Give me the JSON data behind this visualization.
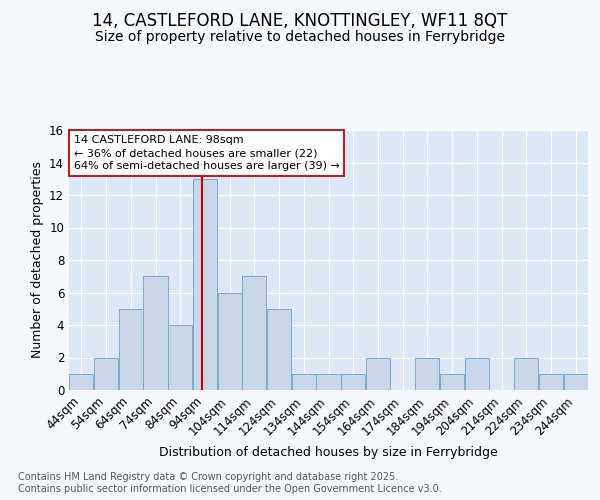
{
  "title_line1": "14, CASTLEFORD LANE, KNOTTINGLEY, WF11 8QT",
  "title_line2": "Size of property relative to detached houses in Ferrybridge",
  "xlabel": "Distribution of detached houses by size in Ferrybridge",
  "ylabel": "Number of detached properties",
  "footnote": "Contains HM Land Registry data © Crown copyright and database right 2025.\nContains public sector information licensed under the Open Government Licence v3.0.",
  "bin_labels": [
    "44sqm",
    "54sqm",
    "64sqm",
    "74sqm",
    "84sqm",
    "94sqm",
    "104sqm",
    "114sqm",
    "124sqm",
    "134sqm",
    "144sqm",
    "154sqm",
    "164sqm",
    "174sqm",
    "184sqm",
    "194sqm",
    "204sqm",
    "214sqm",
    "224sqm",
    "234sqm",
    "244sqm"
  ],
  "bin_starts": [
    44,
    54,
    64,
    74,
    84,
    94,
    104,
    114,
    124,
    134,
    144,
    154,
    164,
    174,
    184,
    194,
    204,
    214,
    224,
    234,
    244
  ],
  "bar_heights": [
    1,
    2,
    5,
    7,
    4,
    13,
    6,
    7,
    5,
    1,
    1,
    1,
    2,
    0,
    2,
    1,
    2,
    0,
    2,
    1,
    1
  ],
  "bar_color": "#c8d8ea",
  "bar_edge_color": "#7aaad0",
  "marker_value": 98,
  "marker_color": "#cc0000",
  "annotation_text": "14 CASTLEFORD LANE: 98sqm\n← 36% of detached houses are smaller (22)\n64% of semi-detached houses are larger (39) →",
  "annotation_box_facecolor": "#ffffff",
  "annotation_box_edgecolor": "#cc0000",
  "ylim_max": 16,
  "yticks": [
    0,
    2,
    4,
    6,
    8,
    10,
    12,
    14,
    16
  ],
  "fig_bg_color": "#f5f8fc",
  "plot_bg_color": "#dce8f5",
  "grid_color": "#ffffff",
  "title_fontsize": 12,
  "subtitle_fontsize": 10,
  "axis_label_fontsize": 9,
  "tick_fontsize": 8.5,
  "footnote_fontsize": 7
}
